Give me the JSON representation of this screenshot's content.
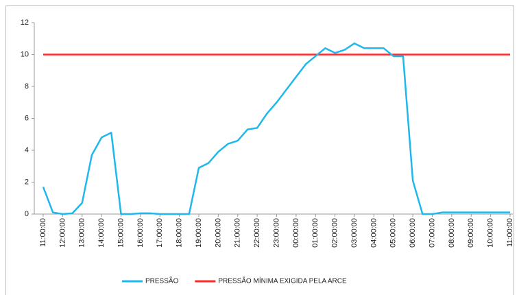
{
  "chart_data": {
    "type": "line",
    "categories": [
      "11:00:00",
      null,
      "12:00:00",
      null,
      "13:00:00",
      null,
      "14:00:00",
      null,
      "15:00:00",
      null,
      "16:00:00",
      null,
      "17:00:00",
      null,
      "18:00:00",
      null,
      "19:00:00",
      null,
      "20:00:00",
      null,
      "21:00:00",
      null,
      "22:00:00",
      null,
      "23:00:00",
      null,
      "00:00:00",
      null,
      "01:00:00",
      null,
      "02:00:00",
      null,
      "03:00:00",
      null,
      "04:00:00",
      null,
      "05:00:00",
      null,
      "06:00:00",
      null,
      "07:00:00",
      null,
      "08:00:00",
      null,
      "09:00:00",
      null,
      "10:00:00",
      null,
      "11:00:00"
    ],
    "series": [
      {
        "name": "PRESSÃO",
        "color": "#1fb8ec",
        "values": [
          1.7,
          0.1,
          0,
          0.05,
          0.7,
          3.7,
          4.8,
          5.1,
          0,
          0,
          0.05,
          0.05,
          0,
          0,
          0,
          0,
          2.9,
          3.2,
          3.9,
          4.4,
          4.6,
          5.3,
          5.4,
          6.3,
          7.0,
          7.8,
          8.6,
          9.4,
          9.9,
          10.4,
          10.1,
          10.3,
          10.7,
          10.4,
          10.4,
          10.4,
          9.9,
          9.9,
          2.1,
          0,
          0,
          0.1,
          0.1,
          0.1,
          0.1,
          0.1,
          0.1,
          0.1,
          0.1
        ]
      },
      {
        "name": "PRESSÃO MÍNIMA EXIGIDA PELA ARCE",
        "color": "#ff2a2a",
        "values": [
          10,
          10,
          10,
          10,
          10,
          10,
          10,
          10,
          10,
          10,
          10,
          10,
          10,
          10,
          10,
          10,
          10,
          10,
          10,
          10,
          10,
          10,
          10,
          10,
          10,
          10,
          10,
          10,
          10,
          10,
          10,
          10,
          10,
          10,
          10,
          10,
          10,
          10,
          10,
          10,
          10,
          10,
          10,
          10,
          10,
          10,
          10,
          10,
          10
        ]
      }
    ],
    "ylim": [
      0,
      12
    ],
    "yticks": [
      0,
      2,
      4,
      6,
      8,
      10,
      12
    ],
    "grid": false,
    "legend": "bottom"
  }
}
